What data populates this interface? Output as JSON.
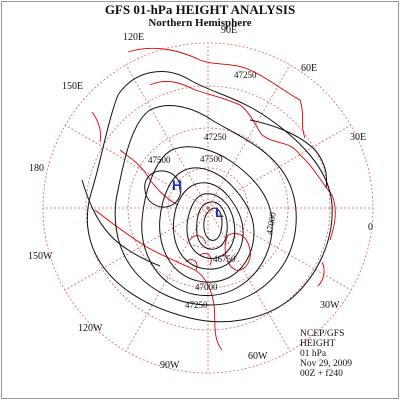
{
  "header": {
    "title": "GFS 01-hPa HEIGHT ANALYSIS",
    "subtitle": "Northern Hemisphere"
  },
  "longitude_labels": [
    "90E",
    "120E",
    "60E",
    "150E",
    "30E",
    "180",
    "0",
    "150W",
    "30W",
    "120W",
    "60W",
    "90W"
  ],
  "contour_labels": [
    "47250",
    "47500",
    "47250",
    "47500",
    "47250",
    "47000",
    "47000",
    "46750"
  ],
  "pressure_centers": {
    "high": "H",
    "low": "L"
  },
  "info_block": {
    "line1": "NCEP/GFS",
    "line2": "HEIGHT",
    "line3": "01 hPa",
    "line4": "Nov 29, 2009",
    "line5": "00Z + f240"
  },
  "colors": {
    "grid": "#e06060",
    "coast": "#e00000",
    "contour": "#111111",
    "center": "#2030c0"
  }
}
